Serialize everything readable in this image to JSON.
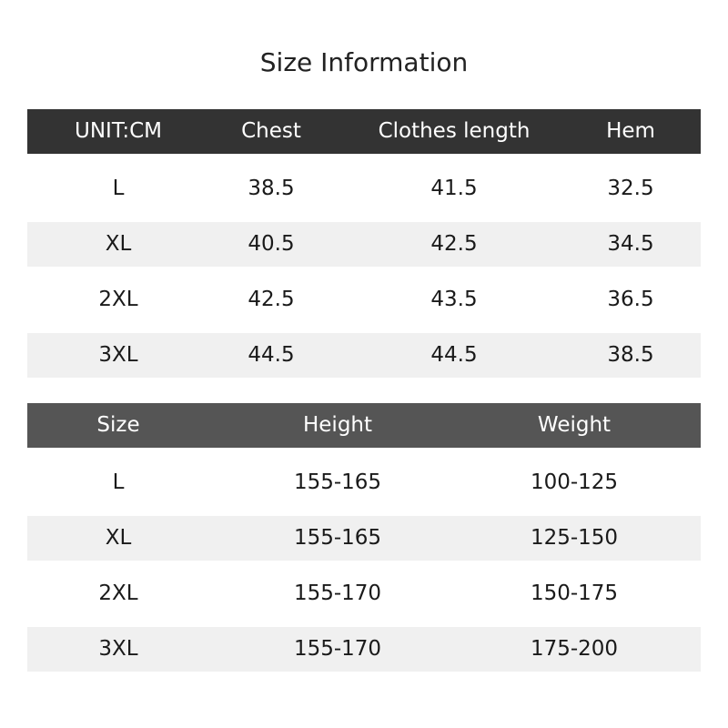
{
  "title": "Size Information",
  "table1": {
    "headers": [
      "UNIT:CM",
      "Chest",
      "Clothes length",
      "Hem"
    ],
    "rows": [
      [
        "L",
        "38.5",
        "41.5",
        "32.5"
      ],
      [
        "XL",
        "40.5",
        "42.5",
        "34.5"
      ],
      [
        "2XL",
        "42.5",
        "43.5",
        "36.5"
      ],
      [
        "3XL",
        "44.5",
        "44.5",
        "38.5"
      ]
    ]
  },
  "table2": {
    "headers": [
      "Size",
      "Height",
      "Weight"
    ],
    "rows": [
      [
        "L",
        "155-165",
        "100-125"
      ],
      [
        "XL",
        "155-165",
        "125-150"
      ],
      [
        "2XL",
        "155-170",
        "150-175"
      ],
      [
        "3XL",
        "155-170",
        "175-200"
      ]
    ]
  },
  "colors": {
    "header1": "#333333",
    "header2": "#555555",
    "stripe": "#f0f0f0"
  }
}
